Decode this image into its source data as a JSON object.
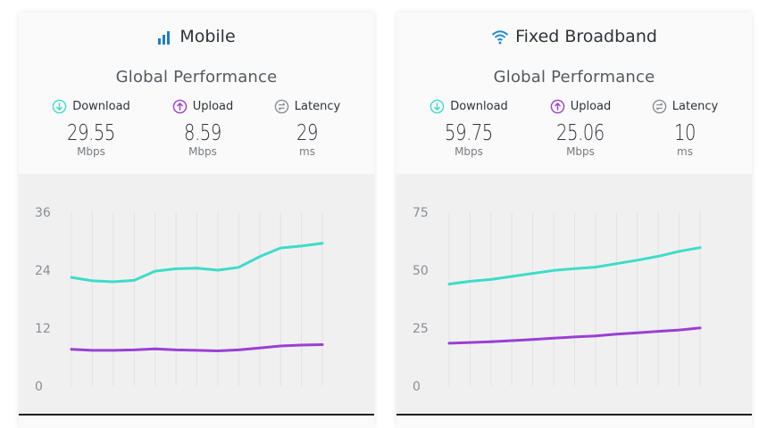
{
  "colors": {
    "download": "#3ddcca",
    "upload": "#9b3fd4",
    "latency": "#8a8e94",
    "grid": "#e2e2e2"
  },
  "cards": [
    {
      "id": "mobile",
      "title": "Mobile",
      "icon": "signal-bars-icon",
      "subtitle": "Global Performance",
      "metrics": {
        "download": {
          "label": "Download",
          "value": "29.55",
          "unit": "Mbps"
        },
        "upload": {
          "label": "Upload",
          "value": "8.59",
          "unit": "Mbps"
        },
        "latency": {
          "label": "Latency",
          "value": "29",
          "unit": "ms"
        }
      }
    },
    {
      "id": "fixed",
      "title": "Fixed Broadband",
      "icon": "wifi-icon",
      "subtitle": "Global Performance",
      "metrics": {
        "download": {
          "label": "Download",
          "value": "59.75",
          "unit": "Mbps"
        },
        "upload": {
          "label": "Upload",
          "value": "25.06",
          "unit": "Mbps"
        },
        "latency": {
          "label": "Latency",
          "value": "10",
          "unit": "ms"
        }
      }
    }
  ],
  "chart_data": [
    {
      "type": "line",
      "ylim": [
        0,
        36
      ],
      "yticks": [
        "0",
        "12",
        "24",
        "36"
      ],
      "grid": true,
      "series": [
        {
          "key": "download",
          "values": [
            22.5,
            21.8,
            21.6,
            21.9,
            23.8,
            24.3,
            24.4,
            24.0,
            24.6,
            26.8,
            28.6,
            29.0,
            29.55
          ]
        },
        {
          "key": "upload",
          "values": [
            7.6,
            7.4,
            7.4,
            7.5,
            7.7,
            7.5,
            7.4,
            7.3,
            7.5,
            7.9,
            8.3,
            8.5,
            8.59
          ]
        }
      ]
    },
    {
      "type": "line",
      "ylim": [
        0,
        75
      ],
      "yticks": [
        "0",
        "25",
        "50",
        "75"
      ],
      "grid": true,
      "series": [
        {
          "key": "download",
          "values": [
            44.0,
            45.2,
            46.0,
            47.3,
            48.6,
            49.9,
            50.7,
            51.3,
            52.8,
            54.3,
            56.0,
            58.1,
            59.75
          ]
        },
        {
          "key": "upload",
          "values": [
            18.5,
            18.8,
            19.1,
            19.6,
            20.1,
            20.7,
            21.2,
            21.6,
            22.4,
            23.0,
            23.6,
            24.2,
            25.06
          ]
        }
      ]
    }
  ]
}
